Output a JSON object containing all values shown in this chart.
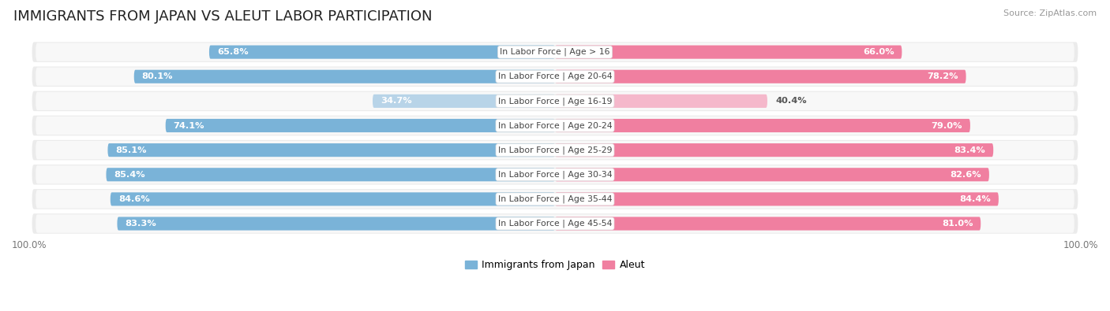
{
  "title": "IMMIGRANTS FROM JAPAN VS ALEUT LABOR PARTICIPATION",
  "source": "Source: ZipAtlas.com",
  "categories": [
    "In Labor Force | Age > 16",
    "In Labor Force | Age 20-64",
    "In Labor Force | Age 16-19",
    "In Labor Force | Age 20-24",
    "In Labor Force | Age 25-29",
    "In Labor Force | Age 30-34",
    "In Labor Force | Age 35-44",
    "In Labor Force | Age 45-54"
  ],
  "japan_values": [
    65.8,
    80.1,
    34.7,
    74.1,
    85.1,
    85.4,
    84.6,
    83.3
  ],
  "aleut_values": [
    66.0,
    78.2,
    40.4,
    79.0,
    83.4,
    82.6,
    84.4,
    81.0
  ],
  "japan_color": "#7ab3d8",
  "japan_color_light": "#b8d4e8",
  "aleut_color": "#f07fa0",
  "aleut_color_light": "#f5b8cb",
  "row_bg_color": "#ebebeb",
  "row_inner_color": "#f8f8f8",
  "max_value": 100.0,
  "title_fontsize": 13,
  "label_fontsize": 8.2,
  "cat_fontsize": 7.8,
  "tick_fontsize": 8.5,
  "legend_fontsize": 9,
  "source_fontsize": 8
}
